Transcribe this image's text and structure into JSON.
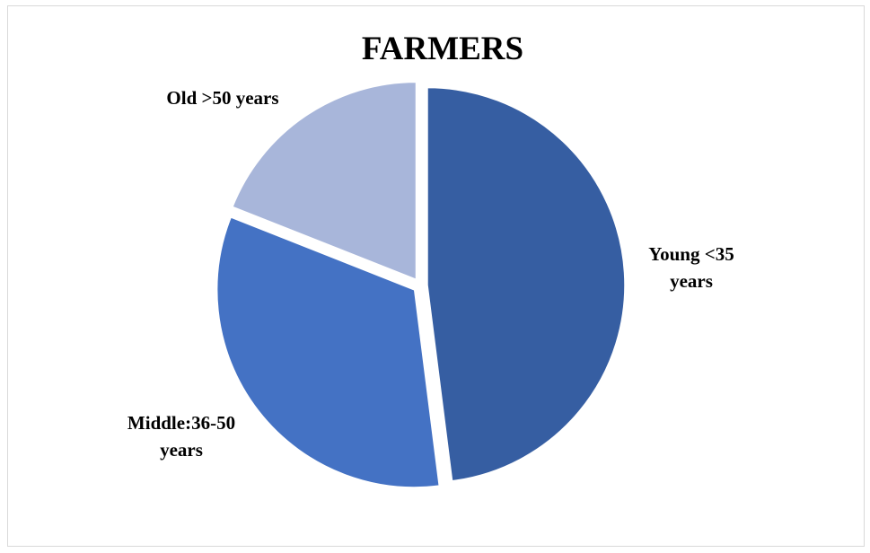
{
  "chart_data": {
    "type": "pie",
    "title": "FARMERS",
    "slices": [
      {
        "label_lines": [
          "Young <35",
          "years"
        ],
        "value": 48,
        "color": "#365ea2"
      },
      {
        "label_lines": [
          "Middle:36-50",
          "years"
        ],
        "value": 33,
        "color": "#4472c4"
      },
      {
        "label_lines": [
          "Old >50 years"
        ],
        "value": 19,
        "color": "#a8b6da"
      }
    ],
    "exploded": true,
    "legend": "none",
    "start_angle_deg": 0,
    "direction": "clockwise"
  }
}
